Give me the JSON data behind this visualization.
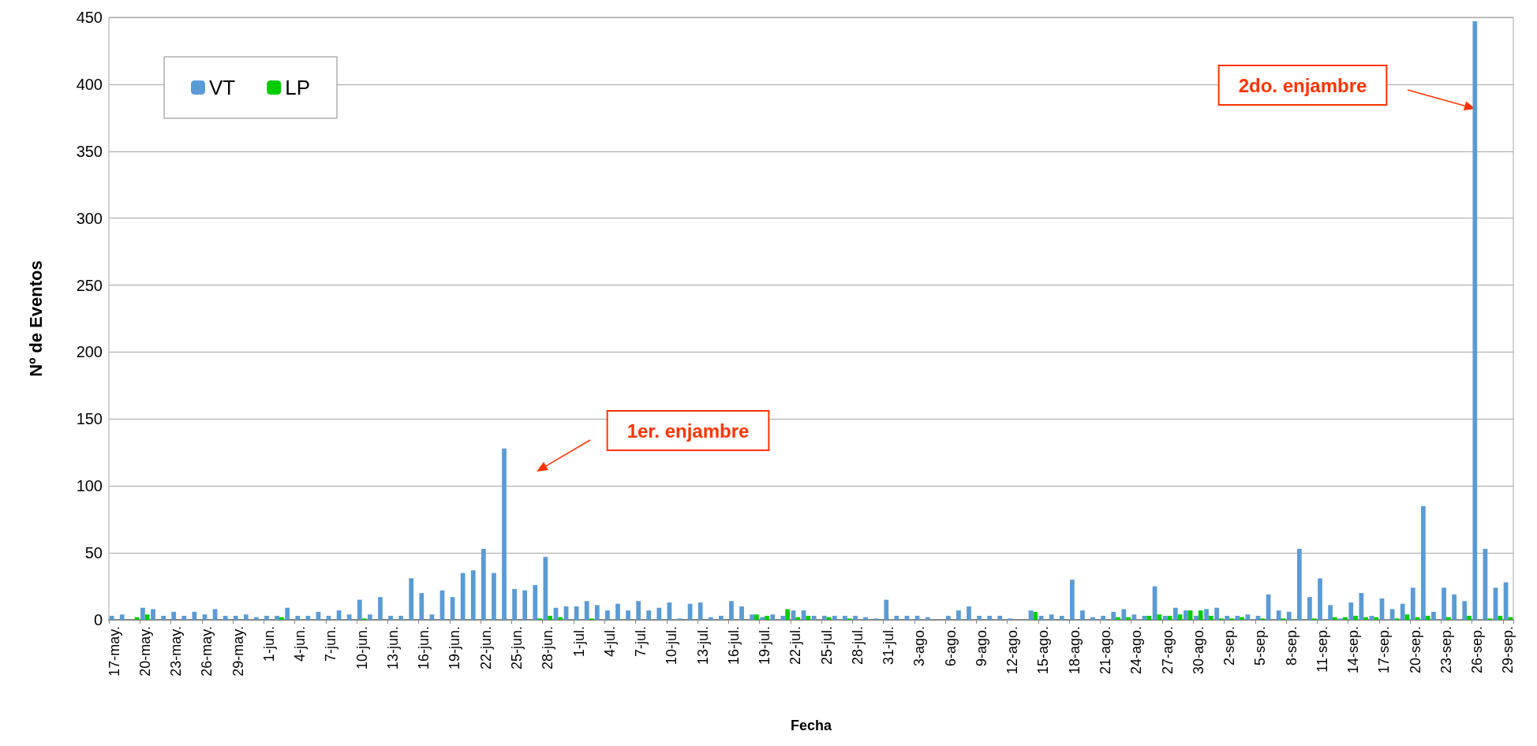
{
  "chart_data": {
    "type": "bar",
    "xlabel": "Fecha",
    "ylabel": "Nº de Eventos",
    "categories": [
      "17-may.",
      null,
      null,
      "20-may.",
      null,
      null,
      "23-may.",
      null,
      null,
      "26-may.",
      null,
      null,
      "29-may.",
      null,
      null,
      "1-jun.",
      null,
      null,
      "4-jun.",
      null,
      null,
      "7-jun.",
      null,
      null,
      "10-jun.",
      null,
      null,
      "13-jun.",
      null,
      null,
      "16-jun.",
      null,
      null,
      "19-jun.",
      null,
      null,
      "22-jun.",
      null,
      null,
      "25-jun.",
      null,
      null,
      "28-jun.",
      null,
      null,
      "1-jul.",
      null,
      null,
      "4-jul.",
      null,
      null,
      "7-jul.",
      null,
      null,
      "10-jul.",
      null,
      null,
      "13-jul.",
      null,
      null,
      "16-jul.",
      null,
      null,
      "19-jul.",
      null,
      null,
      "22-jul.",
      null,
      null,
      "25-jul.",
      null,
      null,
      "28-jul.",
      null,
      null,
      "31-jul.",
      null,
      null,
      "3-ago.",
      null,
      null,
      "6-ago.",
      null,
      null,
      "9-ago.",
      null,
      null,
      "12-ago.",
      null,
      null,
      "15-ago.",
      null,
      null,
      "18-ago.",
      null,
      null,
      "21-ago.",
      null,
      null,
      "24-ago.",
      null,
      null,
      "27-ago.",
      null,
      null,
      "30-ago.",
      null,
      null,
      "2-sep.",
      null,
      null,
      "5-sep.",
      null,
      null,
      "8-sep.",
      null,
      null,
      "11-sep.",
      null,
      null,
      "14-sep.",
      null,
      null,
      "17-sep.",
      null,
      null,
      "20-sep.",
      null,
      null,
      "23-sep.",
      null,
      null,
      "26-sep.",
      null,
      null,
      "29-sep."
    ],
    "series": [
      {
        "name": "VT",
        "color": "#5b9bd5",
        "values": [
          3,
          4,
          0,
          9,
          8,
          3,
          6,
          3,
          6,
          4,
          8,
          3,
          3,
          4,
          2,
          3,
          3,
          9,
          3,
          3,
          6,
          3,
          7,
          4,
          15,
          4,
          17,
          3,
          3,
          31,
          20,
          4,
          22,
          17,
          35,
          37,
          53,
          35,
          128,
          23,
          22,
          26,
          47,
          9,
          10,
          10,
          14,
          11,
          7,
          12,
          7,
          14,
          7,
          9,
          13,
          1,
          12,
          13,
          2,
          3,
          14,
          10,
          4,
          2,
          4,
          3,
          7,
          7,
          3,
          3,
          3,
          3,
          3,
          2,
          1,
          15,
          3,
          3,
          3,
          2,
          0,
          3,
          7,
          10,
          3,
          3,
          3,
          1,
          0,
          7,
          3,
          4,
          3,
          30,
          7,
          2,
          3,
          6,
          8,
          4,
          3,
          25,
          3,
          9,
          7,
          3,
          8,
          9,
          3,
          3,
          4,
          3,
          19,
          7,
          6,
          53,
          17,
          31,
          11,
          1,
          13,
          20,
          3,
          16,
          8,
          12,
          24,
          85,
          6,
          24,
          19,
          14,
          447,
          53,
          24,
          28
        ]
      },
      {
        "name": "LP",
        "color": "#00cc00",
        "values": [
          0,
          0,
          2,
          4,
          0,
          0,
          0,
          0,
          0,
          0,
          0,
          0,
          0,
          0,
          0,
          0,
          2,
          0,
          0,
          0,
          0,
          0,
          0,
          0,
          1,
          0,
          0,
          0,
          0,
          0,
          0,
          0,
          0,
          0,
          0,
          0,
          0,
          0,
          0,
          0,
          0,
          1,
          3,
          2,
          0,
          0,
          1,
          0,
          0,
          0,
          0,
          0,
          0,
          0,
          0,
          0,
          0,
          0,
          0,
          0,
          0,
          0,
          4,
          3,
          0,
          8,
          2,
          3,
          0,
          2,
          0,
          1,
          0,
          0,
          0,
          0,
          0,
          0,
          0,
          0,
          0,
          0,
          0,
          0,
          0,
          0,
          0,
          0,
          0,
          6,
          0,
          0,
          0,
          0,
          0,
          0,
          0,
          2,
          2,
          0,
          3,
          4,
          3,
          4,
          7,
          7,
          3,
          1,
          1,
          2,
          0,
          1,
          0,
          1,
          0,
          0,
          1,
          0,
          2,
          2,
          3,
          2,
          2,
          0,
          1,
          4,
          2,
          3,
          0,
          2,
          0,
          3,
          0,
          1,
          3,
          2
        ]
      }
    ],
    "ylim": [
      0,
      450
    ],
    "yticks": [
      0,
      50,
      100,
      150,
      200,
      250,
      300,
      350,
      400,
      450
    ],
    "grid": "y",
    "legend": "top left",
    "annotations": [
      "1er. enjambre",
      "2do. enjambre"
    ]
  }
}
